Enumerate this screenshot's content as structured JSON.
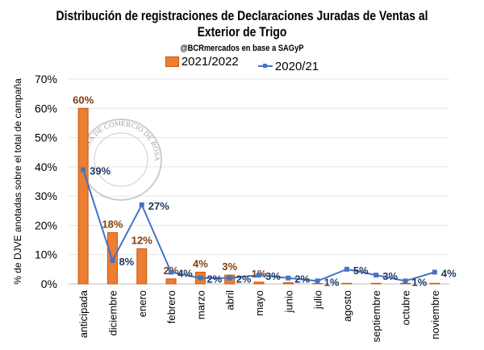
{
  "chart_data": {
    "type": "bar",
    "title": "Distribución de registraciones de Declaraciones Juradas de Ventas al Exterior de Trigo",
    "subtitle": "@BCRmercados en base a SAGyP",
    "xlabel": "",
    "ylabel": "% de DJVE anotadas sobre el total de campaña",
    "ylim": [
      0,
      70
    ],
    "yticks": [
      "0%",
      "10%",
      "20%",
      "30%",
      "40%",
      "50%",
      "60%",
      "70%"
    ],
    "grid": true,
    "legend_position": "top",
    "categories": [
      "anticipada",
      "diciembre",
      "enero",
      "febrero",
      "marzo",
      "abril",
      "mayo",
      "junio",
      "julio",
      "agosto",
      "septiembre",
      "octubre",
      "noviembre"
    ],
    "series": [
      {
        "name": "2021/2022",
        "type": "bar",
        "color": "#ED7D31",
        "values": [
          60,
          17.5,
          12,
          1.7,
          4,
          3,
          0.6,
          0.4,
          0.1,
          0.2,
          0.2,
          0.2,
          0.2
        ],
        "labels": [
          "60%",
          "18%",
          "12%",
          "2%",
          "4%",
          "3%",
          "1%",
          "",
          "",
          "",
          "",
          "",
          ""
        ]
      },
      {
        "name": "2020/21",
        "type": "line",
        "color": "#4472C4",
        "values": [
          39,
          8,
          27,
          4,
          2,
          2,
          3,
          2,
          1,
          5,
          3,
          1,
          4
        ],
        "labels": [
          "39%",
          "8%",
          "27%",
          "4%",
          "2%",
          "2%",
          "3%",
          "2%",
          "1%",
          "5%",
          "3%",
          "1%",
          "4%"
        ]
      }
    ],
    "watermark": "BOLSA DE COMERCIO DE ROSARIO"
  }
}
